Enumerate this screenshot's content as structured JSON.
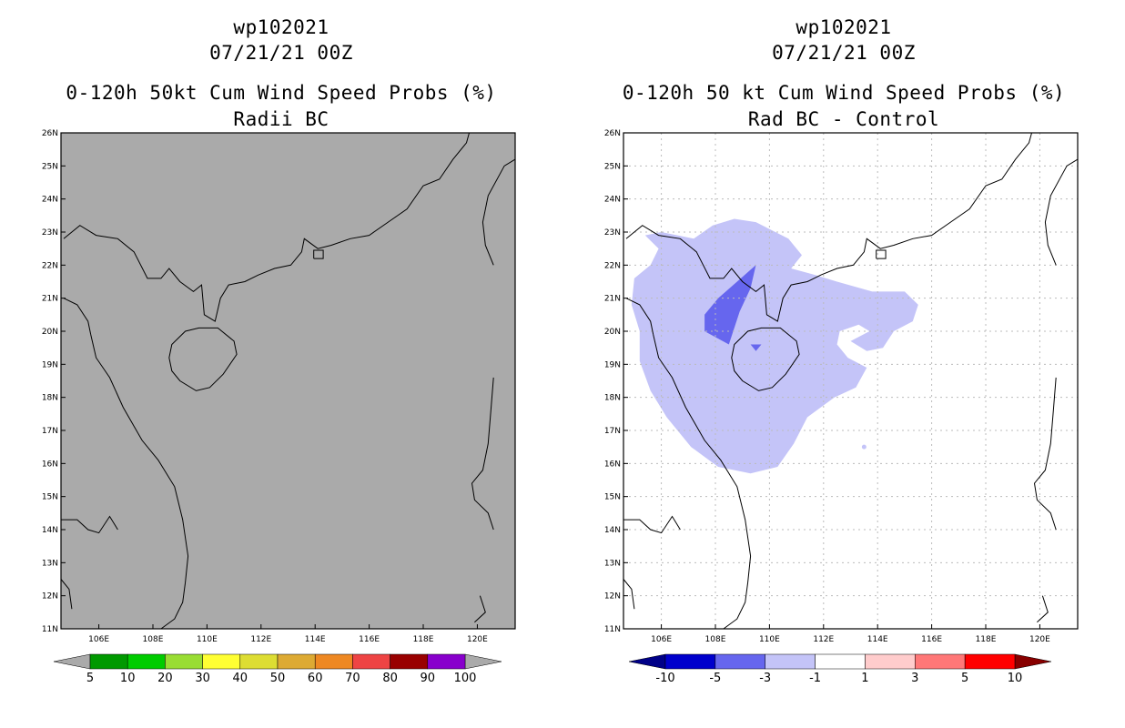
{
  "left_panel": {
    "title_line1": "wp102021",
    "title_line2": "07/21/21 00Z",
    "title_line3": "0-120h 50kt Cum Wind Speed Probs (%)",
    "title_line4": "Radii BC",
    "background_color": "#aaaaaa",
    "colorbar": {
      "labels": [
        "5",
        "10",
        "20",
        "30",
        "40",
        "50",
        "60",
        "70",
        "80",
        "90",
        "100"
      ],
      "colors": [
        "#009900",
        "#00cc00",
        "#99dd33",
        "#ffff33",
        "#dddd33",
        "#ddaa33",
        "#ee8822",
        "#ee4444",
        "#990000",
        "#8800cc"
      ],
      "end_arrow_color": "#aaaaaa"
    }
  },
  "right_panel": {
    "title_line1": "wp102021",
    "title_line2": "07/21/21 00Z",
    "title_line3": "0-120h 50 kt Cum Wind Speed Probs (%)",
    "title_line4": "Rad BC - Control",
    "colorbar": {
      "labels": [
        "-10",
        "-5",
        "-3",
        "-1",
        "1",
        "3",
        "5",
        "10"
      ],
      "colors": [
        "#0000cc",
        "#6666ee",
        "#c4c4f8",
        "#ffffff",
        "#ffcccc",
        "#ff7777",
        "#ff0000"
      ],
      "end_arrow_left": "#000088",
      "end_arrow_right": "#880000"
    },
    "shading": {
      "light_region_color": "#c4c4f8",
      "dark_region_color": "#6666ee"
    }
  },
  "map": {
    "lon_labels": [
      "106E",
      "108E",
      "110E",
      "112E",
      "114E",
      "116E",
      "118E",
      "120E"
    ],
    "lat_labels": [
      "26N",
      "25N",
      "24N",
      "23N",
      "22N",
      "21N",
      "20N",
      "19N",
      "18N",
      "17N",
      "16N",
      "15N",
      "14N",
      "13N",
      "12N",
      "11N"
    ],
    "lon_values": [
      106,
      108,
      110,
      112,
      114,
      116,
      118,
      120
    ],
    "lat_values": [
      26,
      25,
      24,
      23,
      22,
      21,
      20,
      19,
      18,
      17,
      16,
      15,
      14,
      13,
      12,
      11
    ],
    "lon_range": [
      104.6,
      121.4
    ],
    "lat_range": [
      11,
      26
    ]
  }
}
